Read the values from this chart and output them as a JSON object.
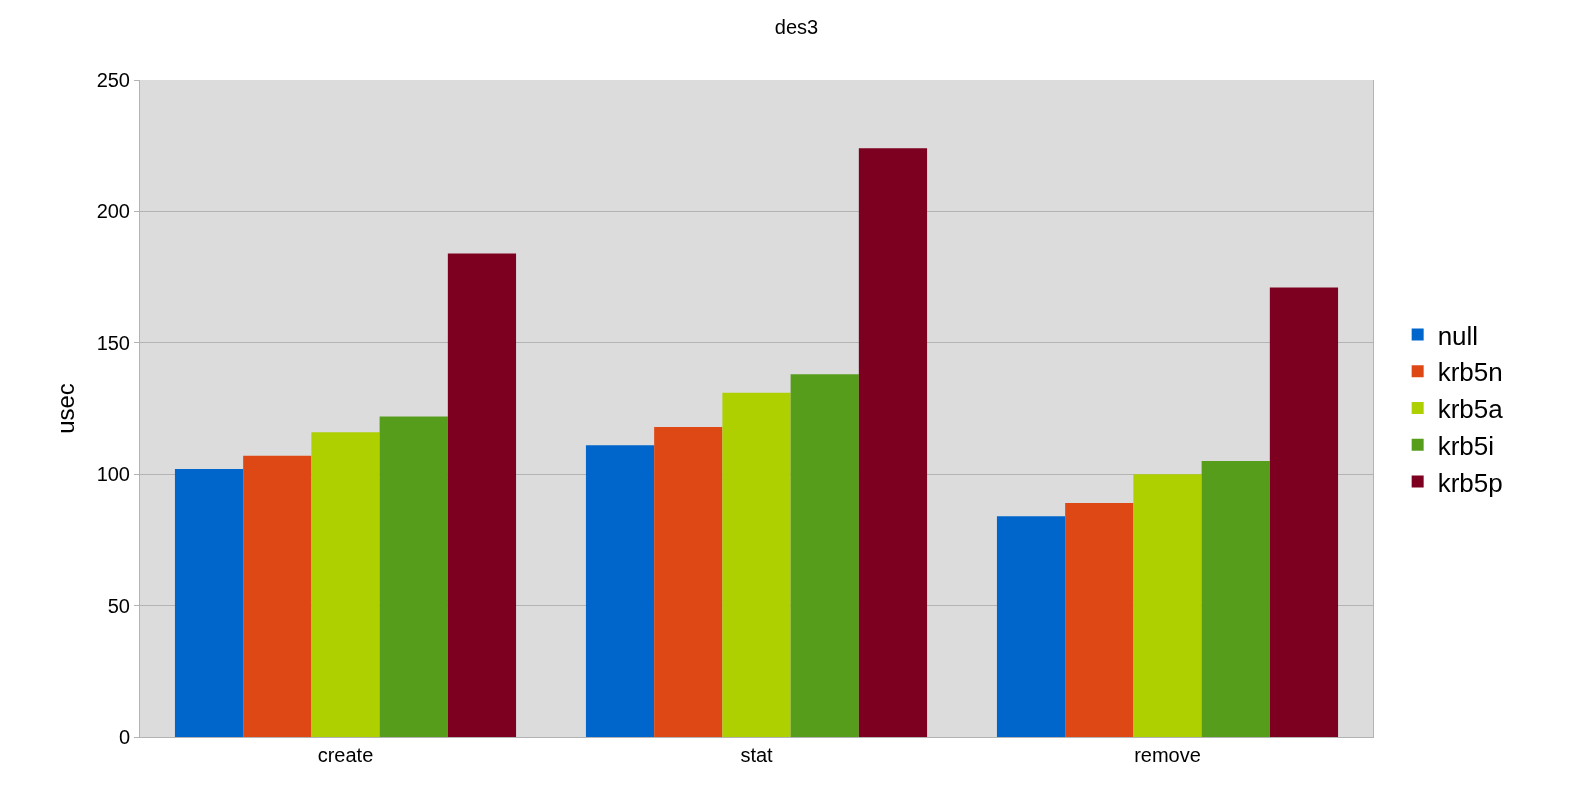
{
  "chart_data": {
    "type": "bar",
    "title": "des3",
    "ylabel": "usec",
    "categories": [
      "create",
      "stat",
      "remove"
    ],
    "series": [
      {
        "name": "null",
        "color": "#0066cc",
        "values": [
          102,
          111,
          84
        ]
      },
      {
        "name": "krb5n",
        "color": "#dd4814",
        "values": [
          107,
          118,
          89
        ]
      },
      {
        "name": "krb5a",
        "color": "#aecf00",
        "values": [
          116,
          131,
          100
        ]
      },
      {
        "name": "krb5i",
        "color": "#579d1c",
        "values": [
          122,
          138,
          105
        ]
      },
      {
        "name": "krb5p",
        "color": "#7e0021",
        "values": [
          184,
          224,
          171
        ]
      }
    ],
    "ylim": [
      0,
      250
    ],
    "yticks": [
      0,
      50,
      100,
      150,
      200,
      250
    ],
    "grid": "y",
    "legend": "right"
  }
}
